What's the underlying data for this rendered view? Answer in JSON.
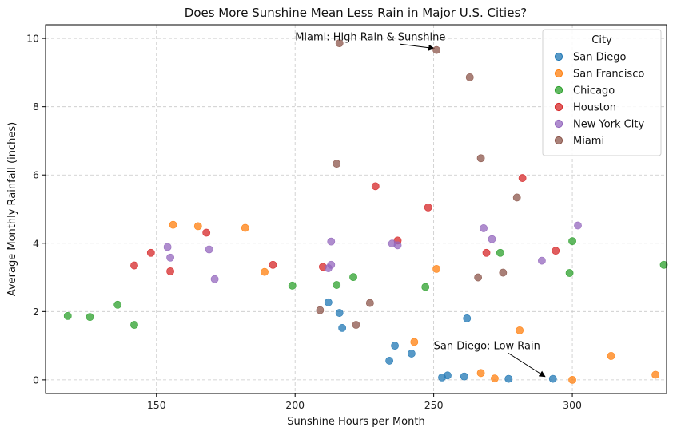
{
  "chart_data": {
    "type": "scatter",
    "title": "Does More Sunshine Mean Less Rain in Major U.S. Cities?",
    "xlabel": "Sunshine Hours per Month",
    "ylabel": "Average Monthly Rainfall (inches)",
    "xlim": [
      110,
      334
    ],
    "ylim": [
      -0.4,
      10.4
    ],
    "xticks": [
      150,
      200,
      250,
      300
    ],
    "yticks": [
      0,
      2,
      4,
      6,
      8,
      10
    ],
    "grid": true,
    "legend": {
      "title": "City",
      "placement": "top-right"
    },
    "series": [
      {
        "name": "San Diego",
        "color": "#1f77b4",
        "points": [
          [
            212,
            2.27
          ],
          [
            216,
            1.96
          ],
          [
            217,
            1.52
          ],
          [
            262,
            1.8
          ],
          [
            234,
            0.56
          ],
          [
            236,
            1.0
          ],
          [
            242,
            0.77
          ],
          [
            253,
            0.07
          ],
          [
            255,
            0.13
          ],
          [
            261,
            0.1
          ],
          [
            277,
            0.03
          ],
          [
            293,
            0.03
          ]
        ]
      },
      {
        "name": "San Francisco",
        "color": "#ff7f0e",
        "points": [
          [
            156,
            4.54
          ],
          [
            165,
            4.5
          ],
          [
            182,
            4.45
          ],
          [
            189,
            3.16
          ],
          [
            251,
            3.25
          ],
          [
            243,
            1.11
          ],
          [
            281,
            1.45
          ],
          [
            267,
            0.2
          ],
          [
            272,
            0.04
          ],
          [
            300,
            0.0
          ],
          [
            314,
            0.7
          ],
          [
            330,
            0.15
          ]
        ]
      },
      {
        "name": "Chicago",
        "color": "#2ca02c",
        "points": [
          [
            118,
            1.87
          ],
          [
            126,
            1.84
          ],
          [
            136,
            2.2
          ],
          [
            142,
            1.61
          ],
          [
            199,
            2.76
          ],
          [
            215,
            2.78
          ],
          [
            221,
            3.01
          ],
          [
            247,
            2.72
          ],
          [
            274,
            3.72
          ],
          [
            299,
            3.13
          ],
          [
            300,
            4.06
          ],
          [
            333,
            3.37
          ]
        ]
      },
      {
        "name": "Houston",
        "color": "#d62728",
        "points": [
          [
            142,
            3.35
          ],
          [
            148,
            3.72
          ],
          [
            155,
            3.18
          ],
          [
            168,
            4.31
          ],
          [
            192,
            3.37
          ],
          [
            210,
            3.31
          ],
          [
            229,
            5.67
          ],
          [
            237,
            4.08
          ],
          [
            248,
            5.05
          ],
          [
            269,
            3.72
          ],
          [
            282,
            5.91
          ],
          [
            294,
            3.78
          ]
        ]
      },
      {
        "name": "New York City",
        "color": "#9467bd",
        "points": [
          [
            154,
            3.89
          ],
          [
            155,
            3.58
          ],
          [
            169,
            3.82
          ],
          [
            171,
            2.95
          ],
          [
            212,
            3.27
          ],
          [
            213,
            4.05
          ],
          [
            213,
            3.37
          ],
          [
            235,
            3.99
          ],
          [
            237,
            3.94
          ],
          [
            268,
            4.44
          ],
          [
            271,
            4.12
          ],
          [
            289,
            3.49
          ],
          [
            302,
            4.52
          ]
        ]
      },
      {
        "name": "Miami",
        "color": "#8c564b",
        "points": [
          [
            209,
            2.04
          ],
          [
            216,
            9.86
          ],
          [
            215,
            6.33
          ],
          [
            222,
            1.61
          ],
          [
            227,
            2.25
          ],
          [
            251,
            9.66
          ],
          [
            263,
            8.86
          ],
          [
            266,
            3.0
          ],
          [
            267,
            6.49
          ],
          [
            275,
            3.14
          ],
          [
            280,
            5.34
          ]
        ]
      }
    ],
    "annotations": [
      {
        "text": "Miami: High Rain & Sunshine",
        "x": 251,
        "y": 9.66,
        "text_x": 200,
        "text_y": 9.95
      },
      {
        "text": "San Diego: Low Rain",
        "x": 291,
        "y": 0.05,
        "text_x": 250,
        "text_y": 0.9
      }
    ]
  }
}
